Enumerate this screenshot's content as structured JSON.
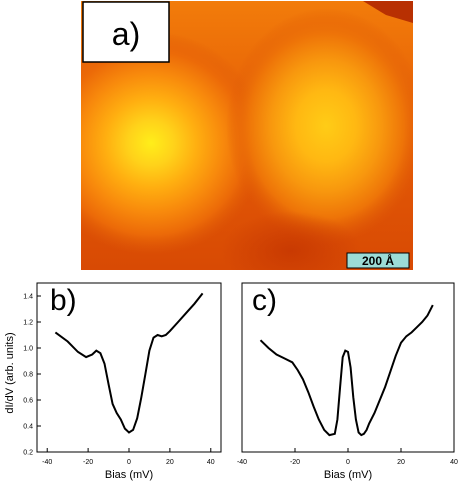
{
  "figure": {
    "panels": [
      {
        "label": "a)",
        "scale_bar_text": "200 Å"
      },
      {
        "label": "b)"
      },
      {
        "label": "c)"
      }
    ]
  },
  "chart_data": [
    {
      "type": "line",
      "panel": "b)",
      "xlabel": "Bias (mV)",
      "ylabel": "dI/dV (arb. units)",
      "xlim": [
        -45,
        45
      ],
      "ylim": [
        0.2,
        1.5
      ],
      "xticks": [
        -40,
        -20,
        0,
        20,
        40
      ],
      "yticks": [
        0.2,
        0.4,
        0.6,
        0.8,
        1.0,
        1.2,
        1.4
      ],
      "ytick_labels": [
        "0.2",
        "0.4",
        "0.6",
        "0.8",
        "1.0",
        "1.2",
        "1.4"
      ],
      "series": [
        {
          "x": [
            -36,
            -30,
            -25,
            -21,
            -18,
            -16,
            -14,
            -12,
            -10,
            -8,
            -6,
            -4,
            -2,
            0,
            2,
            4,
            6,
            8,
            10,
            12,
            14,
            16,
            18,
            20,
            24,
            28,
            32,
            36
          ],
          "y": [
            1.12,
            1.05,
            0.97,
            0.93,
            0.95,
            0.98,
            0.96,
            0.88,
            0.72,
            0.57,
            0.5,
            0.45,
            0.38,
            0.35,
            0.37,
            0.46,
            0.62,
            0.8,
            0.98,
            1.08,
            1.1,
            1.09,
            1.1,
            1.13,
            1.2,
            1.27,
            1.34,
            1.42
          ]
        }
      ]
    },
    {
      "type": "line",
      "panel": "c)",
      "xlabel": "Bias (mV)",
      "ylabel": "",
      "xlim": [
        -40,
        40
      ],
      "ylim": [
        0.2,
        1.5
      ],
      "xticks": [
        -40,
        -20,
        0,
        20,
        40
      ],
      "series": [
        {
          "x": [
            -33,
            -30,
            -27,
            -24,
            -21,
            -19,
            -17,
            -15,
            -13,
            -11,
            -9,
            -7,
            -5,
            -4,
            -3,
            -2,
            -1,
            0,
            1,
            2,
            3,
            4,
            5,
            6,
            7,
            8,
            10,
            12,
            14,
            16,
            18,
            20,
            22,
            24,
            26,
            28,
            30,
            32
          ],
          "y": [
            1.06,
            1.0,
            0.95,
            0.92,
            0.89,
            0.83,
            0.76,
            0.66,
            0.55,
            0.45,
            0.37,
            0.33,
            0.34,
            0.45,
            0.7,
            0.93,
            0.98,
            0.97,
            0.85,
            0.62,
            0.45,
            0.35,
            0.33,
            0.34,
            0.37,
            0.42,
            0.5,
            0.6,
            0.7,
            0.82,
            0.94,
            1.04,
            1.09,
            1.12,
            1.16,
            1.2,
            1.25,
            1.33
          ]
        }
      ]
    }
  ]
}
